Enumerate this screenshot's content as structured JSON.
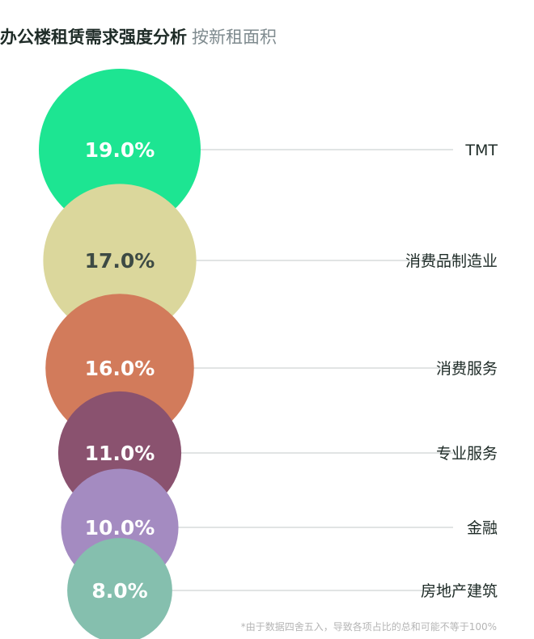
{
  "header": {
    "title": "办公楼租赁需求强度分析",
    "subtitle": "按新租面积"
  },
  "chart_data": {
    "type": "bubble",
    "title": "办公楼租赁需求强度分析",
    "subtitle": "按新租面积",
    "categories": [
      "TMT",
      "消费品制造业",
      "消费服务",
      "专业服务",
      "金融",
      "房地产建筑"
    ],
    "values": [
      19.0,
      17.0,
      16.0,
      11.0,
      10.0,
      8.0
    ],
    "labels": [
      "19.0%",
      "17.0%",
      "16.0%",
      "11.0%",
      "10.0%",
      "8.0%"
    ],
    "colors": [
      "#1de592",
      "#dbd79c",
      "#d27b5b",
      "#8a526f",
      "#a48bc1",
      "#85bfae"
    ],
    "label_colors": [
      "#ffffff",
      "#3d4a44",
      "#ffffff",
      "#ffffff",
      "#ffffff",
      "#ffffff"
    ],
    "unit": "%"
  },
  "footnote": "*由于数据四舍五入，导致各项占比的总和可能不等于100%"
}
